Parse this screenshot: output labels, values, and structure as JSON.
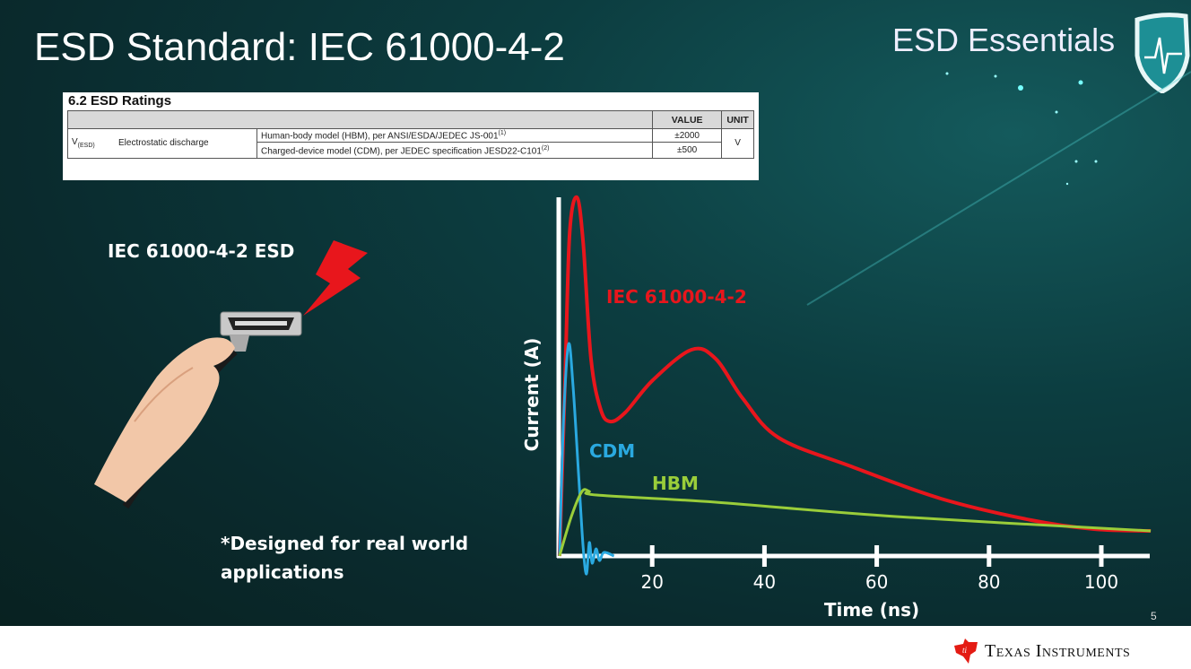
{
  "slide": {
    "title": "ESD Standard: IEC 61000-4-2",
    "brand": "ESD Essentials",
    "page_number": "5",
    "footer_logo": "Texas Instruments",
    "left_label": "IEC 61000-4-2 ESD",
    "caption_line1": "*Designed for real world",
    "caption_line2": "applications"
  },
  "ratings_table": {
    "caption": "6.2   ESD Ratings",
    "headers": [
      "",
      "",
      "",
      "VALUE",
      "UNIT"
    ],
    "symbol": "V",
    "symbol_sub": "(ESD)",
    "parameter": "Electrostatic discharge",
    "rows": [
      {
        "condition": "Human-body model (HBM), per ANSI/ESDA/JEDEC JS-001",
        "note": "(1)",
        "value": "±2000"
      },
      {
        "condition": "Charged-device model (CDM), per JEDEC specification JESD22-C101",
        "note": "(2)",
        "value": "±500"
      }
    ],
    "unit": "V"
  },
  "colors": {
    "iec": "#e8161c",
    "cdm": "#2aa9e0",
    "hbm": "#9acd3a",
    "axis": "#ffffff",
    "ti_red": "#e41b13"
  },
  "chart_data": {
    "type": "line",
    "xlabel": "Time (ns)",
    "ylabel": "Current (A)",
    "xticks": [
      20,
      40,
      60,
      80,
      100
    ],
    "xlim": [
      0,
      110
    ],
    "ylim": [
      0,
      1
    ],
    "y_tick_labels": false,
    "grid": false,
    "legend": "inline labels",
    "series": [
      {
        "name": "IEC 61000-4-2",
        "color": "#e8161c",
        "x": [
          3.5,
          4.5,
          5.3,
          6.6,
          7.7,
          9.1,
          10.8,
          12.5,
          15.2,
          20.1,
          27,
          31.3,
          36.1,
          42.5,
          55.4,
          71.4,
          87.5,
          98.7,
          108.8
        ],
        "y": [
          0,
          0.5,
          0.9,
          1.0,
          0.875,
          0.55,
          0.41,
          0.375,
          0.4,
          0.49,
          0.575,
          0.55,
          0.44,
          0.33,
          0.25,
          0.16,
          0.1,
          0.075,
          0.07
        ]
      },
      {
        "name": "CDM",
        "color": "#2aa9e0",
        "x": [
          3.5,
          4.2,
          5.1,
          5.9,
          6.9,
          7.7,
          8.3,
          8.8,
          9.3,
          10,
          10.6,
          11.4,
          13.2
        ],
        "y": [
          0,
          0.375,
          0.59,
          0.475,
          0.225,
          0.025,
          -0.05,
          0.0375,
          -0.02,
          0.02,
          -0.0125,
          0.01,
          0
        ]
      },
      {
        "name": "HBM",
        "color": "#9acd3a",
        "x": [
          3.5,
          5.6,
          7.5,
          8.8,
          10.1,
          31.3,
          63.4,
          108.8
        ],
        "y": [
          0,
          0.11,
          0.18,
          0.18,
          0.17,
          0.15,
          0.11,
          0.07
        ]
      }
    ]
  }
}
